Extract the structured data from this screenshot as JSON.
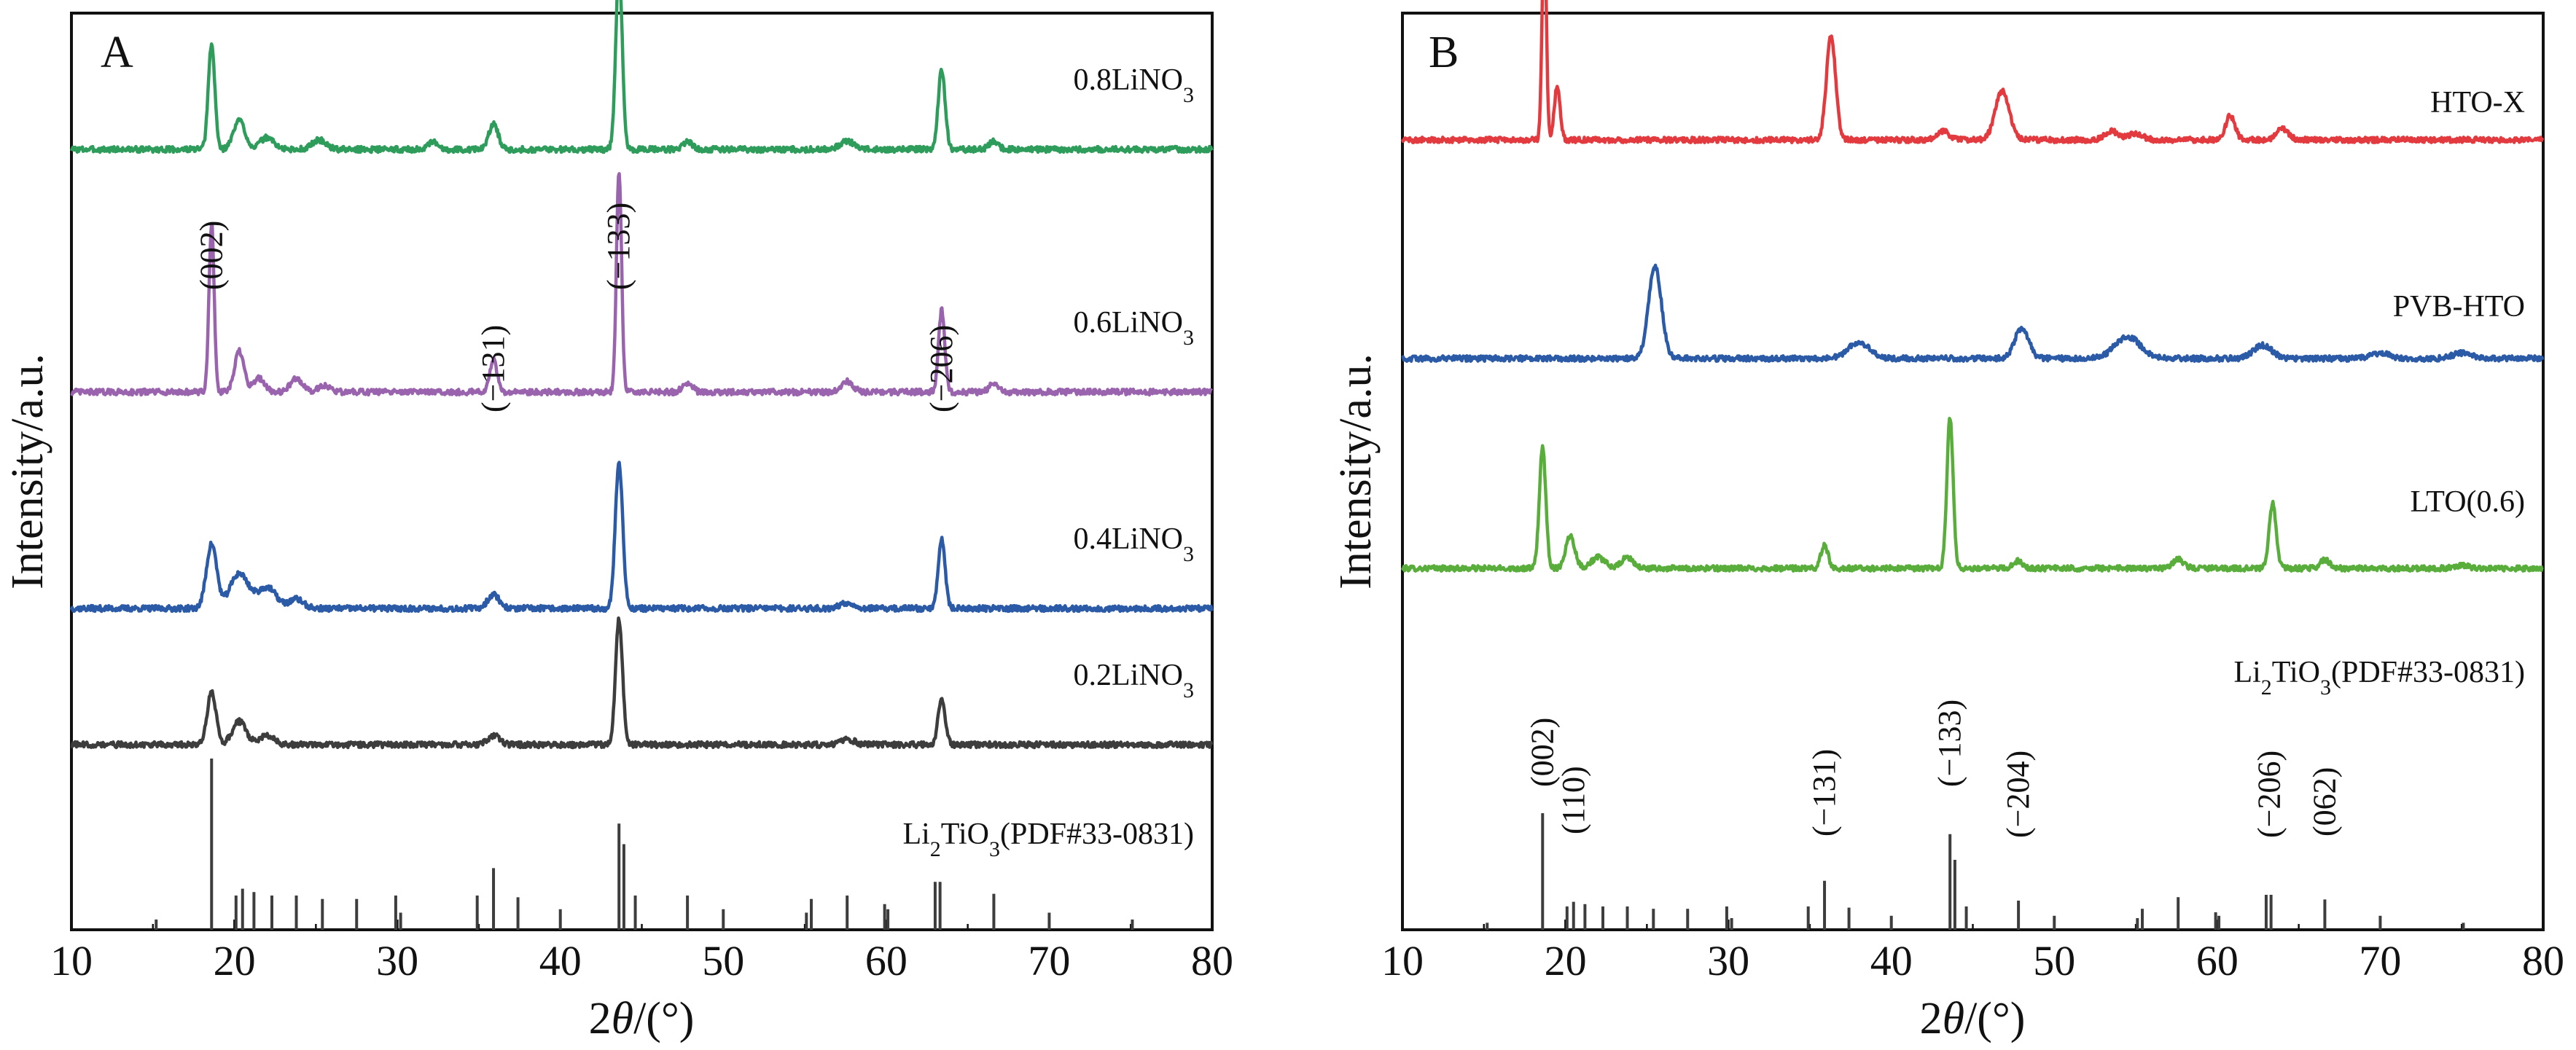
{
  "chart_data": [
    {
      "type": "line",
      "panel": "A",
      "xlabel_prefix": "2",
      "xlabel_symbol": "θ",
      "xlabel_suffix": "/(°)",
      "ylabel": "Intensity/a.u.",
      "xlim": [
        10,
        80
      ],
      "x_ticks": [
        10,
        20,
        30,
        40,
        50,
        60,
        70,
        80
      ],
      "y_ticks": "none",
      "grid": false,
      "legend": "none",
      "series": [
        {
          "name_main": "0.8LiNO",
          "name_sub": "3",
          "name_rest": "",
          "color": "#2e9c5a",
          "baseline": 0.88,
          "peaks": [
            [
              18.6,
              0.9,
              0.28
            ],
            [
              20.3,
              0.25,
              0.5
            ],
            [
              22.0,
              0.1,
              0.6
            ],
            [
              25.2,
              0.08,
              0.6
            ],
            [
              32.2,
              0.06,
              0.4
            ],
            [
              35.9,
              0.22,
              0.4
            ],
            [
              43.6,
              1.55,
              0.28
            ],
            [
              47.8,
              0.07,
              0.4
            ],
            [
              57.6,
              0.07,
              0.6
            ],
            [
              63.4,
              0.68,
              0.3
            ],
            [
              66.6,
              0.07,
              0.4
            ]
          ]
        },
        {
          "name_main": "0.6LiNO",
          "name_sub": "3",
          "name_rest": "",
          "color": "#9a63ad",
          "baseline": 0.24,
          "peaks": [
            [
              18.6,
              1.45,
              0.22
            ],
            [
              20.3,
              0.35,
              0.4
            ],
            [
              21.5,
              0.12,
              0.5
            ],
            [
              23.8,
              0.12,
              0.5
            ],
            [
              25.5,
              0.06,
              0.5
            ],
            [
              35.9,
              0.28,
              0.3
            ],
            [
              43.6,
              1.9,
              0.22
            ],
            [
              47.8,
              0.08,
              0.4
            ],
            [
              57.6,
              0.09,
              0.5
            ],
            [
              63.4,
              0.7,
              0.27
            ],
            [
              66.6,
              0.07,
              0.4
            ]
          ]
        },
        {
          "name_main": "0.4LiNO",
          "name_sub": "3",
          "name_rest": "",
          "color": "#2b5aa6",
          "baseline": -0.28,
          "peaks": [
            [
              18.6,
              0.55,
              0.45
            ],
            [
              20.3,
              0.3,
              0.8
            ],
            [
              22.0,
              0.18,
              0.8
            ],
            [
              23.8,
              0.08,
              0.6
            ],
            [
              35.9,
              0.12,
              0.5
            ],
            [
              43.6,
              1.25,
              0.32
            ],
            [
              57.6,
              0.05,
              0.6
            ],
            [
              63.4,
              0.6,
              0.3
            ]
          ]
        },
        {
          "name_main": "0.2LiNO",
          "name_sub": "3",
          "name_rest": "",
          "color": "#3d3d3d",
          "baseline": -0.62,
          "peaks": [
            [
              18.6,
              0.45,
              0.38
            ],
            [
              20.3,
              0.2,
              0.6
            ],
            [
              22.0,
              0.08,
              0.6
            ],
            [
              35.9,
              0.08,
              0.5
            ],
            [
              43.6,
              1.08,
              0.3
            ],
            [
              57.6,
              0.05,
              0.6
            ],
            [
              63.4,
              0.4,
              0.3
            ]
          ]
        }
      ],
      "reference": {
        "name_main": "Li",
        "name_sub": "2",
        "name_rest": "TiO",
        "name_sub2": "3",
        "name_tail": "(PDF#33-0831)",
        "color": "#3d3d3d",
        "sticks": [
          [
            15.2,
            0.06
          ],
          [
            18.6,
            1.0
          ],
          [
            20.1,
            0.2
          ],
          [
            20.5,
            0.24
          ],
          [
            21.2,
            0.22
          ],
          [
            22.3,
            0.2
          ],
          [
            23.8,
            0.2
          ],
          [
            25.4,
            0.18
          ],
          [
            27.5,
            0.18
          ],
          [
            29.9,
            0.2
          ],
          [
            30.2,
            0.1
          ],
          [
            34.9,
            0.2
          ],
          [
            35.9,
            0.36
          ],
          [
            37.4,
            0.19
          ],
          [
            40.0,
            0.12
          ],
          [
            43.6,
            0.62
          ],
          [
            43.9,
            0.5
          ],
          [
            44.6,
            0.2
          ],
          [
            47.8,
            0.2
          ],
          [
            50.0,
            0.12
          ],
          [
            55.1,
            0.1
          ],
          [
            55.4,
            0.18
          ],
          [
            57.6,
            0.2
          ],
          [
            59.9,
            0.15
          ],
          [
            60.1,
            0.12
          ],
          [
            63.0,
            0.28
          ],
          [
            63.3,
            0.28
          ],
          [
            66.6,
            0.21
          ],
          [
            70.0,
            0.1
          ],
          [
            75.1,
            0.06
          ]
        ]
      },
      "peak_labels": [
        {
          "text": "(002)",
          "x": 18.6
        },
        {
          "text": "(−131)",
          "x": 35.9
        },
        {
          "text": "(−133)",
          "x": 43.6
        },
        {
          "text": "(−206)",
          "x": 63.4
        }
      ]
    },
    {
      "type": "line",
      "panel": "B",
      "xlabel_prefix": "2",
      "xlabel_symbol": "θ",
      "xlabel_suffix": "/(°)",
      "ylabel": "Intensity/a.u.",
      "xlim": [
        10,
        80
      ],
      "x_ticks": [
        10,
        20,
        30,
        40,
        50,
        60,
        70,
        80
      ],
      "y_ticks": "none",
      "grid": false,
      "legend": "none",
      "series": [
        {
          "name_main": "HTO-X",
          "name_sub": "",
          "name_rest": "",
          "color": "#e23a3e",
          "baseline": 0.72,
          "peaks": [
            [
              18.7,
              2.0,
              0.18
            ],
            [
              19.5,
              0.5,
              0.25
            ],
            [
              36.3,
              0.95,
              0.4
            ],
            [
              43.2,
              0.08,
              0.5
            ],
            [
              46.8,
              0.45,
              0.6
            ],
            [
              53.5,
              0.08,
              0.6
            ],
            [
              55.0,
              0.06,
              0.6
            ],
            [
              60.8,
              0.22,
              0.4
            ],
            [
              64.0,
              0.1,
              0.5
            ]
          ]
        },
        {
          "name_main": "PVB-HTO",
          "name_sub": "",
          "name_rest": "",
          "color": "#2b5aa6",
          "baseline": 0.05,
          "peaks": [
            [
              25.5,
              0.85,
              0.55
            ],
            [
              38.0,
              0.15,
              0.9
            ],
            [
              48.0,
              0.28,
              0.6
            ],
            [
              54.5,
              0.2,
              1.1
            ],
            [
              62.8,
              0.12,
              0.8
            ],
            [
              70.0,
              0.05,
              0.8
            ],
            [
              75.0,
              0.05,
              0.8
            ]
          ]
        },
        {
          "name_main": "LTO(0.6)",
          "name_sub": "",
          "name_rest": "",
          "color": "#59ad3b",
          "baseline": -0.65,
          "peaks": [
            [
              18.6,
              1.1,
              0.28
            ],
            [
              20.3,
              0.3,
              0.4
            ],
            [
              22.0,
              0.1,
              0.6
            ],
            [
              23.8,
              0.1,
              0.5
            ],
            [
              35.9,
              0.22,
              0.3
            ],
            [
              43.6,
              1.38,
              0.27
            ],
            [
              47.8,
              0.07,
              0.4
            ],
            [
              57.6,
              0.08,
              0.5
            ],
            [
              63.4,
              0.6,
              0.3
            ],
            [
              66.6,
              0.08,
              0.4
            ],
            [
              75.0,
              0.03,
              0.6
            ]
          ]
        }
      ],
      "reference": {
        "name_main": "Li",
        "name_sub": "2",
        "name_rest": "TiO",
        "name_sub2": "3",
        "name_tail": "(PDF#33-0831)",
        "color": "#3d3d3d",
        "sticks": [
          [
            15.2,
            0.06
          ],
          [
            18.6,
            1.0
          ],
          [
            20.1,
            0.2
          ],
          [
            20.5,
            0.24
          ],
          [
            21.2,
            0.22
          ],
          [
            22.3,
            0.2
          ],
          [
            23.8,
            0.2
          ],
          [
            25.4,
            0.18
          ],
          [
            27.5,
            0.18
          ],
          [
            29.9,
            0.2
          ],
          [
            30.2,
            0.1
          ],
          [
            34.9,
            0.2
          ],
          [
            35.9,
            0.42
          ],
          [
            37.4,
            0.19
          ],
          [
            40.0,
            0.12
          ],
          [
            43.6,
            0.82
          ],
          [
            43.9,
            0.6
          ],
          [
            44.6,
            0.2
          ],
          [
            47.8,
            0.25
          ],
          [
            50.0,
            0.12
          ],
          [
            55.1,
            0.1
          ],
          [
            55.4,
            0.18
          ],
          [
            57.6,
            0.28
          ],
          [
            59.9,
            0.15
          ],
          [
            60.1,
            0.12
          ],
          [
            63.0,
            0.3
          ],
          [
            63.3,
            0.3
          ],
          [
            66.6,
            0.26
          ],
          [
            70.0,
            0.12
          ],
          [
            75.1,
            0.06
          ]
        ]
      },
      "peak_labels": [
        {
          "text": "(002)",
          "x": 18.6
        },
        {
          "text": "(110)",
          "x": 20.5
        },
        {
          "text": "(−131)",
          "x": 35.9
        },
        {
          "text": "(−133)",
          "x": 43.6
        },
        {
          "text": "(−204)",
          "x": 47.8
        },
        {
          "text": "(−206)",
          "x": 63.2
        },
        {
          "text": "(062)",
          "x": 66.6
        }
      ]
    }
  ]
}
